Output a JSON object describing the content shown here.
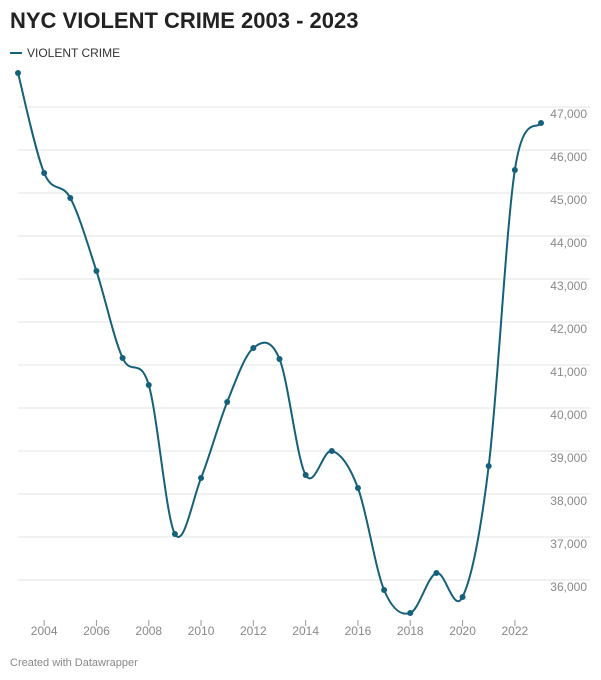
{
  "chart_data": {
    "type": "line",
    "title": "NYC VIOLENT CRIME 2003 - 2023",
    "footer": "Created with Datawrapper",
    "x": [
      2003,
      2004,
      2005,
      2006,
      2007,
      2008,
      2009,
      2010,
      2011,
      2012,
      2013,
      2014,
      2015,
      2016,
      2017,
      2018,
      2019,
      2020,
      2021,
      2022,
      2023
    ],
    "series": [
      {
        "name": "VIOLENT CRIME",
        "color": "#15607a",
        "values": [
          47790,
          45465,
          44884,
          43186,
          41163,
          40535,
          37070,
          38372,
          40140,
          41395,
          41140,
          38442,
          39000,
          38140,
          35767,
          35233,
          36163,
          35605,
          38651,
          45535,
          46628
        ]
      }
    ],
    "xlim": [
      2003,
      2023
    ],
    "xticks": [
      2004,
      2006,
      2008,
      2010,
      2012,
      2014,
      2016,
      2018,
      2020,
      2022
    ],
    "ylim": [
      35000,
      48000
    ],
    "yticks": [
      {
        "value": 36000,
        "label": "36,000"
      },
      {
        "value": 37000,
        "label": "37,000"
      },
      {
        "value": 38000,
        "label": "38,000"
      },
      {
        "value": 39000,
        "label": "39,000"
      },
      {
        "value": 40000,
        "label": "40,000"
      },
      {
        "value": 41000,
        "label": "41,000"
      },
      {
        "value": 42000,
        "label": "42,000"
      },
      {
        "value": 43000,
        "label": "43,000"
      },
      {
        "value": 44000,
        "label": "44,000"
      },
      {
        "value": 45000,
        "label": "45,000"
      },
      {
        "value": 46000,
        "label": "46,000"
      },
      {
        "value": 47000,
        "label": "47,000"
      }
    ],
    "grid": true
  }
}
